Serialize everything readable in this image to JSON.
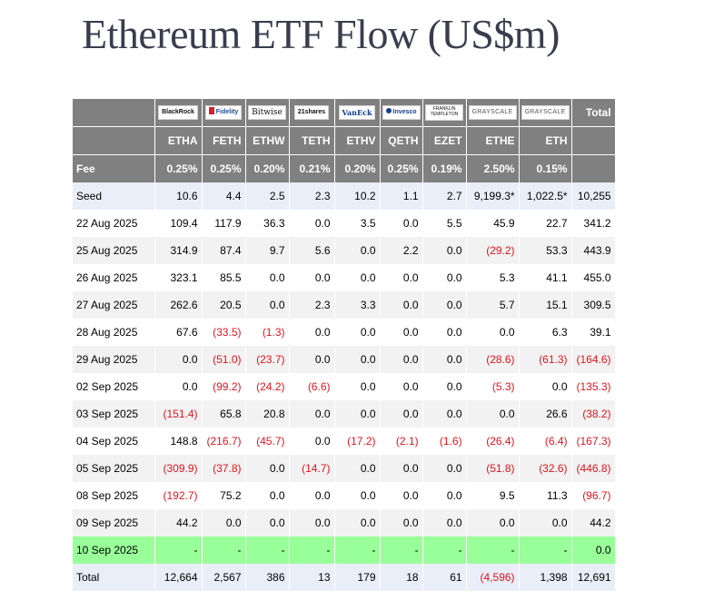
{
  "title": "Ethereum ETF Flow (US$m)",
  "chart_data": {
    "type": "table",
    "title": "Ethereum ETF Flow (US$m)",
    "issuers": [
      "BlackRock",
      "Fidelity",
      "Bitwise",
      "21shares",
      "VanEck",
      "Invesco",
      "FRANKLIN TEMPLETON",
      "GRAYSCALE",
      "GRAYSCALE"
    ],
    "total_header": "Total",
    "tickers": [
      "ETHA",
      "FETH",
      "ETHW",
      "TETH",
      "ETHV",
      "QETH",
      "EZET",
      "ETHE",
      "ETH"
    ],
    "fee_label": "Fee",
    "fees": [
      "0.25%",
      "0.25%",
      "0.20%",
      "0.21%",
      "0.20%",
      "0.25%",
      "0.19%",
      "2.50%",
      "0.15%"
    ],
    "rows": [
      {
        "label": "Seed",
        "values": [
          "10.6",
          "4.4",
          "2.5",
          "2.3",
          "10.2",
          "1.1",
          "2.7",
          "9,199.3*",
          "1,022.5*"
        ],
        "total": "10,255"
      },
      {
        "label": "22 Aug 2025",
        "values": [
          "109.4",
          "117.9",
          "36.3",
          "0.0",
          "3.5",
          "0.0",
          "5.5",
          "45.9",
          "22.7"
        ],
        "total": "341.2"
      },
      {
        "label": "25 Aug 2025",
        "values": [
          "314.9",
          "87.4",
          "9.7",
          "5.6",
          "0.0",
          "2.2",
          "0.0",
          "(29.2)",
          "53.3"
        ],
        "total": "443.9"
      },
      {
        "label": "26 Aug 2025",
        "values": [
          "323.1",
          "85.5",
          "0.0",
          "0.0",
          "0.0",
          "0.0",
          "0.0",
          "5.3",
          "41.1"
        ],
        "total": "455.0"
      },
      {
        "label": "27 Aug 2025",
        "values": [
          "262.6",
          "20.5",
          "0.0",
          "2.3",
          "3.3",
          "0.0",
          "0.0",
          "5.7",
          "15.1"
        ],
        "total": "309.5"
      },
      {
        "label": "28 Aug 2025",
        "values": [
          "67.6",
          "(33.5)",
          "(1.3)",
          "0.0",
          "0.0",
          "0.0",
          "0.0",
          "0.0",
          "6.3"
        ],
        "total": "39.1"
      },
      {
        "label": "29 Aug 2025",
        "values": [
          "0.0",
          "(51.0)",
          "(23.7)",
          "0.0",
          "0.0",
          "0.0",
          "0.0",
          "(28.6)",
          "(61.3)"
        ],
        "total": "(164.6)"
      },
      {
        "label": "02 Sep 2025",
        "values": [
          "0.0",
          "(99.2)",
          "(24.2)",
          "(6.6)",
          "0.0",
          "0.0",
          "0.0",
          "(5.3)",
          "0.0"
        ],
        "total": "(135.3)"
      },
      {
        "label": "03 Sep 2025",
        "values": [
          "(151.4)",
          "65.8",
          "20.8",
          "0.0",
          "0.0",
          "0.0",
          "0.0",
          "0.0",
          "26.6"
        ],
        "total": "(38.2)"
      },
      {
        "label": "04 Sep 2025",
        "values": [
          "148.8",
          "(216.7)",
          "(45.7)",
          "0.0",
          "(17.2)",
          "(2.1)",
          "(1.6)",
          "(26.4)",
          "(6.4)"
        ],
        "total": "(167.3)"
      },
      {
        "label": "05 Sep 2025",
        "values": [
          "(309.9)",
          "(37.8)",
          "0.0",
          "(14.7)",
          "0.0",
          "0.0",
          "0.0",
          "(51.8)",
          "(32.6)"
        ],
        "total": "(446.8)"
      },
      {
        "label": "08 Sep 2025",
        "values": [
          "(192.7)",
          "75.2",
          "0.0",
          "0.0",
          "0.0",
          "0.0",
          "0.0",
          "9.5",
          "11.3"
        ],
        "total": "(96.7)"
      },
      {
        "label": "09 Sep 2025",
        "values": [
          "44.2",
          "0.0",
          "0.0",
          "0.0",
          "0.0",
          "0.0",
          "0.0",
          "0.0",
          "0.0"
        ],
        "total": "44.2"
      },
      {
        "label": "10 Sep 2025",
        "values": [
          "-",
          "-",
          "-",
          "-",
          "-",
          "-",
          "-",
          "-",
          "-"
        ],
        "total": "0.0"
      },
      {
        "label": "Total",
        "values": [
          "12,664",
          "2,567",
          "386",
          "13",
          "179",
          "18",
          "61",
          "(4,596)",
          "1,398"
        ],
        "total": "12,691"
      }
    ]
  },
  "colors": {
    "header_bg": "#808080",
    "header_text": "#ffffff",
    "seed_total_bg": "#e9eef8",
    "alt_row_bg": "#f2f2f2",
    "latest_row_bg": "#99ff99",
    "negative_text": "#e0141e"
  }
}
